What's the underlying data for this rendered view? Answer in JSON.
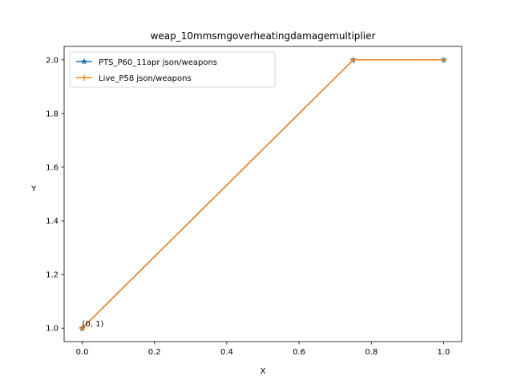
{
  "chart_data": {
    "type": "line",
    "title": "weap_10mmsmgoverheatingdamagemultiplier",
    "xlabel": "X",
    "ylabel": "Y",
    "xlim": [
      -0.05,
      1.05
    ],
    "ylim": [
      0.95,
      2.05
    ],
    "x_ticks": [
      0.0,
      0.2,
      0.4,
      0.6,
      0.8,
      1.0
    ],
    "x_tick_labels": [
      "0.0",
      "0.2",
      "0.4",
      "0.6",
      "0.8",
      "1.0"
    ],
    "y_ticks": [
      1.0,
      1.2,
      1.4,
      1.6,
      1.8,
      2.0
    ],
    "y_tick_labels": [
      "1.0",
      "1.2",
      "1.4",
      "1.6",
      "1.8",
      "2.0"
    ],
    "grid": false,
    "legend_position": "top-left",
    "series": [
      {
        "name": "PTS_P60_11apr json/weapons",
        "color": "#1f77b4",
        "marker": "star",
        "points": [
          [
            0,
            1
          ],
          [
            0.75,
            2
          ],
          [
            1,
            2
          ]
        ]
      },
      {
        "name": "Live_P58 json/weapons",
        "color": "#ff7f0e",
        "marker": "plus",
        "points": [
          [
            0,
            1
          ],
          [
            0.75,
            2
          ],
          [
            1,
            2
          ]
        ]
      }
    ],
    "annotations": [
      {
        "text": "(0, 1)",
        "x": 0,
        "y": 1
      }
    ]
  }
}
